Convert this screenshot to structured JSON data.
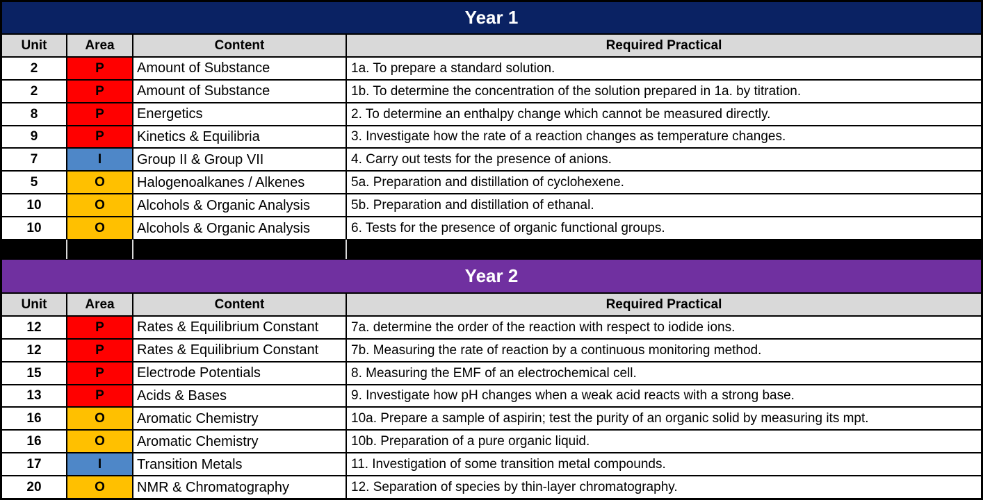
{
  "colors": {
    "year1_band_bg": "#0A2263",
    "year2_band_bg": "#7030A0",
    "header_row_bg": "#D9D9D9",
    "grid_border": "#000000"
  },
  "area_colors": {
    "P": "#FF0000",
    "I": "#4E87C8",
    "O": "#FFC000"
  },
  "tables": [
    {
      "title": "Year 1",
      "columns": [
        "Unit",
        "Area",
        "Content",
        "Required Practical"
      ],
      "rows": [
        {
          "unit": "2",
          "area": "P",
          "content": "Amount of Substance",
          "practical": "1a. To prepare a standard solution."
        },
        {
          "unit": "2",
          "area": "P",
          "content": "Amount of Substance",
          "practical": "1b. To determine the concentration of the solution prepared in 1a. by titration."
        },
        {
          "unit": "8",
          "area": "P",
          "content": "Energetics",
          "practical": "2. To determine an enthalpy change which cannot be measured directly."
        },
        {
          "unit": "9",
          "area": "P",
          "content": "Kinetics & Equilibria",
          "practical": "3. Investigate how the rate of a reaction changes as temperature changes."
        },
        {
          "unit": "7",
          "area": "I",
          "content": "Group II & Group VII",
          "practical": "4. Carry out tests for the presence of anions."
        },
        {
          "unit": "5",
          "area": "O",
          "content": "Halogenoalkanes / Alkenes",
          "practical": "5a. Preparation and distillation of cyclohexene."
        },
        {
          "unit": "10",
          "area": "O",
          "content": "Alcohols & Organic Analysis",
          "practical": "5b. Preparation and distillation of ethanal."
        },
        {
          "unit": "10",
          "area": "O",
          "content": "Alcohols & Organic Analysis",
          "practical": "6. Tests for the presence of organic functional groups."
        }
      ]
    },
    {
      "title": "Year 2",
      "columns": [
        "Unit",
        "Area",
        "Content",
        "Required Practical"
      ],
      "rows": [
        {
          "unit": "12",
          "area": "P",
          "content": "Rates & Equilibrium Constant",
          "practical": "7a. determine the order of the reaction with respect to iodide ions."
        },
        {
          "unit": "12",
          "area": "P",
          "content": "Rates & Equilibrium Constant",
          "practical": "7b. Measuring the rate of reaction by a continuous monitoring method."
        },
        {
          "unit": "15",
          "area": "P",
          "content": "Electrode Potentials",
          "practical": "8. Measuring the EMF of an electrochemical cell."
        },
        {
          "unit": "13",
          "area": "P",
          "content": "Acids & Bases",
          "practical": "9. Investigate how pH changes when a weak acid reacts with a strong base."
        },
        {
          "unit": "16",
          "area": "O",
          "content": "Aromatic Chemistry",
          "practical": "10a. Prepare a sample of aspirin; test the purity of an organic solid by measuring its mpt."
        },
        {
          "unit": "16",
          "area": "O",
          "content": "Aromatic Chemistry",
          "practical": "10b. Preparation of a pure organic liquid."
        },
        {
          "unit": "17",
          "area": "I",
          "content": "Transition Metals",
          "practical": "11. Investigation of some transition metal compounds."
        },
        {
          "unit": "20",
          "area": "O",
          "content": "NMR & Chromatography",
          "practical": "12. Separation of species by thin-layer chromatography."
        }
      ]
    }
  ]
}
